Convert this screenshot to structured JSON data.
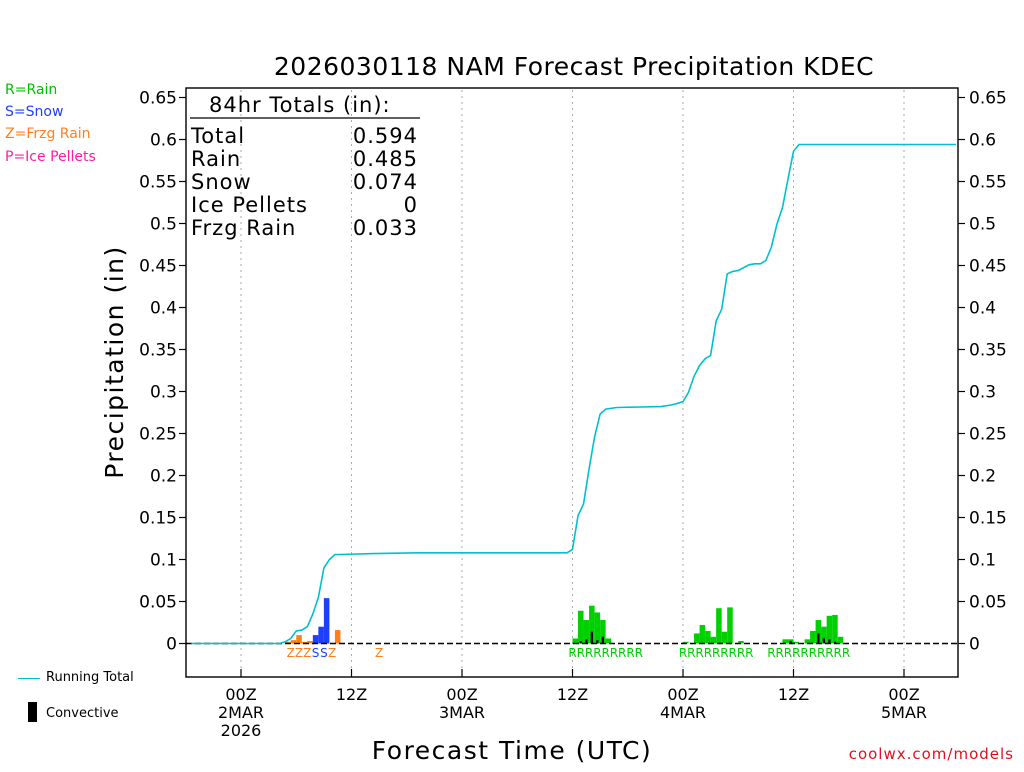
{
  "legend": {
    "rain": "R=Rain",
    "snow": "S=Snow",
    "frzg": "Z=Frzg Rain",
    "ice": "P=Ice Pellets",
    "running_total": "Running Total",
    "convective": "Convective"
  },
  "credit": "coolwx.com/models",
  "colors": {
    "rain": "#00d000",
    "snow": "#1f3fff",
    "frzg": "#ff7f1f",
    "ice": "#ff1fa0",
    "running": "#00c0d0",
    "convective": "#000000"
  },
  "chart_data": {
    "type": "bar",
    "title": "2026030118 NAM Forecast Precipitation KDEC",
    "xlabel": "Forecast Time (UTC)",
    "ylabel": "Precipitation (in)",
    "ylim": [
      -0.04,
      0.66
    ],
    "xlim_hours": [
      -5,
      65
    ],
    "y_ticks": [
      "0.65",
      "0.6",
      "0.55",
      "0.5",
      "0.45",
      "0.4",
      "0.35",
      "0.3",
      "0.25",
      "0.2",
      "0.15",
      "0.1",
      "0.05",
      "0"
    ],
    "x_ticks": [
      {
        "hour": 0,
        "lines": [
          "00Z",
          "2MAR",
          "2026"
        ]
      },
      {
        "hour": 10,
        "lines": [
          "12Z"
        ]
      },
      {
        "hour": 20,
        "lines": [
          "00Z",
          "3MAR"
        ]
      },
      {
        "hour": 30,
        "lines": [
          "12Z"
        ]
      },
      {
        "hour": 40,
        "lines": [
          "00Z",
          "4MAR"
        ]
      },
      {
        "hour": 50,
        "lines": [
          "12Z"
        ]
      },
      {
        "hour": 60,
        "lines": [
          "00Z",
          "5MAR"
        ]
      }
    ],
    "totals": {
      "header": "84hr Totals (in):",
      "rows": [
        {
          "label": "Total",
          "value": "0.594"
        },
        {
          "label": "Rain",
          "value": "0.485"
        },
        {
          "label": "Snow",
          "value": "0.074"
        },
        {
          "label": "Ice Pellets",
          "value": "0"
        },
        {
          "label": "Frzg Rain",
          "value": "0.033"
        }
      ]
    },
    "bars": [
      {
        "x": 4.0,
        "value": 0.002,
        "type": "frzg",
        "conv": 0
      },
      {
        "x": 4.5,
        "value": 0.004,
        "type": "frzg",
        "conv": 0
      },
      {
        "x": 5.0,
        "value": 0.01,
        "type": "frzg",
        "conv": 0
      },
      {
        "x": 5.5,
        "value": 0.002,
        "type": "frzg",
        "conv": 0
      },
      {
        "x": 6.0,
        "value": 0.003,
        "type": "frzg",
        "conv": 0
      },
      {
        "x": 6.5,
        "value": 0.01,
        "type": "snow",
        "conv": 0
      },
      {
        "x": 7.0,
        "value": 0.02,
        "type": "snow",
        "conv": 0
      },
      {
        "x": 7.5,
        "value": 0.054,
        "type": "snow",
        "conv": 0
      },
      {
        "x": 8.5,
        "value": 0.016,
        "type": "frzg",
        "conv": 0
      },
      {
        "x": 30.0,
        "value": 0.006,
        "type": "rain",
        "conv": 0
      },
      {
        "x": 30.5,
        "value": 0.039,
        "type": "rain",
        "conv": 0.003
      },
      {
        "x": 31.0,
        "value": 0.028,
        "type": "rain",
        "conv": 0.005
      },
      {
        "x": 31.5,
        "value": 0.045,
        "type": "rain",
        "conv": 0.014
      },
      {
        "x": 32.0,
        "value": 0.037,
        "type": "rain",
        "conv": 0.004
      },
      {
        "x": 32.5,
        "value": 0.028,
        "type": "rain",
        "conv": 0.008
      },
      {
        "x": 33.0,
        "value": 0.006,
        "type": "rain",
        "conv": 0
      },
      {
        "x": 40.0,
        "value": 0.002,
        "type": "rain",
        "conv": 0
      },
      {
        "x": 41.0,
        "value": 0.012,
        "type": "rain",
        "conv": 0
      },
      {
        "x": 41.5,
        "value": 0.022,
        "type": "rain",
        "conv": 0
      },
      {
        "x": 42.0,
        "value": 0.015,
        "type": "rain",
        "conv": 0
      },
      {
        "x": 42.5,
        "value": 0.008,
        "type": "rain",
        "conv": 0
      },
      {
        "x": 43.0,
        "value": 0.042,
        "type": "rain",
        "conv": 0
      },
      {
        "x": 43.5,
        "value": 0.014,
        "type": "rain",
        "conv": 0
      },
      {
        "x": 44.0,
        "value": 0.043,
        "type": "rain",
        "conv": 0
      },
      {
        "x": 45.0,
        "value": 0.003,
        "type": "rain",
        "conv": 0
      },
      {
        "x": 49.0,
        "value": 0.005,
        "type": "rain",
        "conv": 0
      },
      {
        "x": 49.5,
        "value": 0.005,
        "type": "rain",
        "conv": 0.003
      },
      {
        "x": 50.0,
        "value": 0.002,
        "type": "rain",
        "conv": 0
      },
      {
        "x": 51.0,
        "value": 0.005,
        "type": "rain",
        "conv": 0
      },
      {
        "x": 51.5,
        "value": 0.015,
        "type": "rain",
        "conv": 0
      },
      {
        "x": 52.0,
        "value": 0.028,
        "type": "rain",
        "conv": 0.012
      },
      {
        "x": 52.5,
        "value": 0.02,
        "type": "rain",
        "conv": 0.006
      },
      {
        "x": 53.0,
        "value": 0.033,
        "type": "rain",
        "conv": 0.005
      },
      {
        "x": 53.5,
        "value": 0.034,
        "type": "rain",
        "conv": 0.002
      },
      {
        "x": 54.0,
        "value": 0.008,
        "type": "rain",
        "conv": 0
      }
    ],
    "precip_type_labels": [
      {
        "x": 4.5,
        "text": "Z",
        "type": "frzg"
      },
      {
        "x": 5.25,
        "text": "Z",
        "type": "frzg"
      },
      {
        "x": 6.0,
        "text": "Z",
        "type": "frzg"
      },
      {
        "x": 6.75,
        "text": "S",
        "type": "snow"
      },
      {
        "x": 7.5,
        "text": "S",
        "type": "snow"
      },
      {
        "x": 8.25,
        "text": "Z",
        "type": "frzg"
      },
      {
        "x": 12.5,
        "text": "Z",
        "type": "frzg"
      },
      {
        "x": 30.0,
        "text": "R",
        "type": "rain"
      },
      {
        "x": 30.75,
        "text": "R",
        "type": "rain"
      },
      {
        "x": 31.5,
        "text": "R",
        "type": "rain"
      },
      {
        "x": 32.25,
        "text": "R",
        "type": "rain"
      },
      {
        "x": 33.0,
        "text": "R",
        "type": "rain"
      },
      {
        "x": 33.75,
        "text": "R",
        "type": "rain"
      },
      {
        "x": 34.5,
        "text": "R",
        "type": "rain"
      },
      {
        "x": 35.25,
        "text": "R",
        "type": "rain"
      },
      {
        "x": 36.0,
        "text": "R",
        "type": "rain"
      },
      {
        "x": 40.0,
        "text": "R",
        "type": "rain"
      },
      {
        "x": 40.75,
        "text": "R",
        "type": "rain"
      },
      {
        "x": 41.5,
        "text": "R",
        "type": "rain"
      },
      {
        "x": 42.25,
        "text": "R",
        "type": "rain"
      },
      {
        "x": 43.0,
        "text": "R",
        "type": "rain"
      },
      {
        "x": 43.75,
        "text": "R",
        "type": "rain"
      },
      {
        "x": 44.5,
        "text": "R",
        "type": "rain"
      },
      {
        "x": 45.25,
        "text": "R",
        "type": "rain"
      },
      {
        "x": 46.0,
        "text": "R",
        "type": "rain"
      },
      {
        "x": 48.0,
        "text": "R",
        "type": "rain"
      },
      {
        "x": 48.75,
        "text": "R",
        "type": "rain"
      },
      {
        "x": 49.5,
        "text": "R",
        "type": "rain"
      },
      {
        "x": 50.25,
        "text": "R",
        "type": "rain"
      },
      {
        "x": 51.0,
        "text": "R",
        "type": "rain"
      },
      {
        "x": 51.75,
        "text": "R",
        "type": "rain"
      },
      {
        "x": 52.5,
        "text": "R",
        "type": "rain"
      },
      {
        "x": 53.25,
        "text": "R",
        "type": "rain"
      },
      {
        "x": 54.0,
        "text": "R",
        "type": "rain"
      },
      {
        "x": 54.75,
        "text": "R",
        "type": "rain"
      }
    ],
    "running_total": [
      [
        -4.5,
        0.0
      ],
      [
        3.5,
        0.0
      ],
      [
        4.0,
        0.002
      ],
      [
        4.5,
        0.006
      ],
      [
        5.0,
        0.015
      ],
      [
        5.5,
        0.016
      ],
      [
        6.0,
        0.02
      ],
      [
        6.5,
        0.035
      ],
      [
        7.0,
        0.055
      ],
      [
        7.5,
        0.09
      ],
      [
        8.0,
        0.1
      ],
      [
        8.5,
        0.106
      ],
      [
        9.0,
        0.106
      ],
      [
        12.0,
        0.107
      ],
      [
        16.0,
        0.108
      ],
      [
        29.0,
        0.108
      ],
      [
        29.5,
        0.108
      ],
      [
        30.0,
        0.112
      ],
      [
        30.5,
        0.152
      ],
      [
        31.0,
        0.166
      ],
      [
        31.5,
        0.208
      ],
      [
        32.0,
        0.246
      ],
      [
        32.5,
        0.273
      ],
      [
        33.0,
        0.279
      ],
      [
        34.0,
        0.281
      ],
      [
        38.0,
        0.282
      ],
      [
        39.0,
        0.284
      ],
      [
        39.5,
        0.286
      ],
      [
        40.0,
        0.288
      ],
      [
        40.5,
        0.299
      ],
      [
        41.0,
        0.318
      ],
      [
        41.5,
        0.331
      ],
      [
        42.0,
        0.339
      ],
      [
        42.5,
        0.343
      ],
      [
        43.0,
        0.384
      ],
      [
        43.5,
        0.398
      ],
      [
        44.0,
        0.44
      ],
      [
        44.5,
        0.443
      ],
      [
        45.0,
        0.444
      ],
      [
        46.0,
        0.451
      ],
      [
        46.5,
        0.452
      ],
      [
        47.0,
        0.452
      ],
      [
        47.5,
        0.456
      ],
      [
        48.0,
        0.472
      ],
      [
        48.5,
        0.499
      ],
      [
        49.0,
        0.519
      ],
      [
        49.5,
        0.553
      ],
      [
        50.0,
        0.586
      ],
      [
        50.5,
        0.594
      ],
      [
        55.0,
        0.594
      ],
      [
        64.7,
        0.594
      ]
    ]
  }
}
